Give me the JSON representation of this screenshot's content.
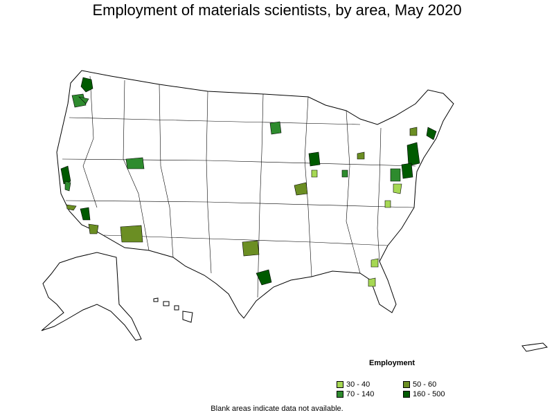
{
  "title": "Employment of materials scientists, by area, May 2020",
  "legend": {
    "title": "Employment",
    "items": [
      {
        "label": "30 - 40",
        "color": "#a6d854"
      },
      {
        "label": "50 - 60",
        "color": "#6b8e23"
      },
      {
        "label": "70 - 140",
        "color": "#2e8b2e"
      },
      {
        "label": "160 - 500",
        "color": "#005a00"
      }
    ]
  },
  "footnote": "Blank areas indicate data not available.",
  "colors": {
    "outline": "#000000",
    "land": "#ffffff",
    "lowest": "#a6d854",
    "low": "#6b8e23",
    "mid": "#2e8b2e",
    "high": "#005a00"
  }
}
